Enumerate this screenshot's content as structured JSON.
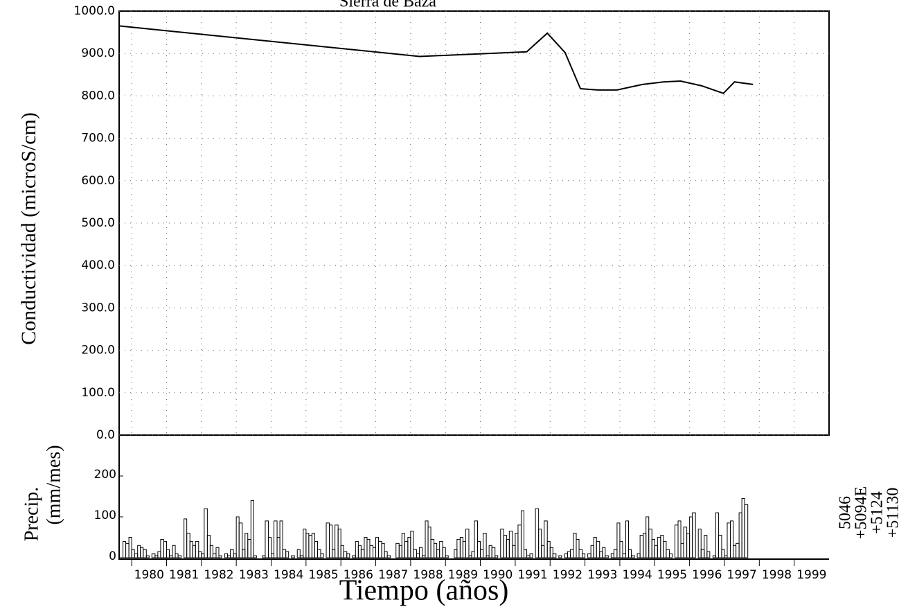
{
  "chart_data": [
    {
      "type": "line",
      "title": "Sierra de Baza",
      "ylabel": "Conductividad (microS/cm)",
      "series": [
        {
          "color": "#000000",
          "x": [
            1979.64,
            1988.26,
            1991.33,
            1991.92,
            1992.43,
            1992.87,
            1993.37,
            1993.92,
            1994.65,
            1995.25,
            1995.74,
            1996.34,
            1996.97,
            1997.29,
            1997.82
          ],
          "values": [
            965,
            893,
            904,
            948,
            902,
            817,
            814,
            814,
            827,
            833,
            835,
            824,
            806,
            833,
            827
          ]
        }
      ],
      "xlim": [
        1979.64,
        2000.0
      ],
      "ylim": [
        0,
        1000
      ],
      "yticks": [
        {
          "value": 0,
          "label": "0.0"
        },
        {
          "value": 100,
          "label": "100.0"
        },
        {
          "value": 200,
          "label": "200.0"
        },
        {
          "value": 300,
          "label": "300.0"
        },
        {
          "value": 400,
          "label": "400.0"
        },
        {
          "value": 500,
          "label": "500.0"
        },
        {
          "value": 600,
          "label": "600.0"
        },
        {
          "value": 700,
          "label": "700.0"
        },
        {
          "value": 800,
          "label": "800.0"
        },
        {
          "value": 900,
          "label": "900.0"
        },
        {
          "value": 1000,
          "label": "1000.0"
        }
      ],
      "grid": true
    },
    {
      "type": "histogram",
      "ylabel": [
        "Precip.",
        "(mm/mes)"
      ],
      "xlabel": "Tiempo (años)",
      "color": "#000000",
      "annotations": [
        "5046",
        "+5094E",
        "+5124",
        "+51130"
      ],
      "bins": [
        1979.75,
        1979.83,
        1979.92,
        1980.0,
        1980.08,
        1980.17,
        1980.25,
        1980.33,
        1980.42,
        1980.5,
        1980.58,
        1980.67,
        1980.75,
        1980.83,
        1980.92,
        1981.0,
        1981.08,
        1981.17,
        1981.25,
        1981.33,
        1981.42,
        1981.5,
        1981.58,
        1981.67,
        1981.75,
        1981.83,
        1981.92,
        1982.0,
        1982.08,
        1982.17,
        1982.25,
        1982.33,
        1982.42,
        1982.5,
        1982.58,
        1982.67,
        1982.75,
        1982.83,
        1982.92,
        1983.0,
        1983.08,
        1983.17,
        1983.25,
        1983.33,
        1983.42,
        1983.5,
        1983.58,
        1983.67,
        1983.75,
        1983.83,
        1983.92,
        1984.0,
        1984.08,
        1984.17,
        1984.25,
        1984.33,
        1984.42,
        1984.5,
        1984.58,
        1984.67,
        1984.75,
        1984.83,
        1984.92,
        1985.0,
        1985.08,
        1985.17,
        1985.25,
        1985.33,
        1985.42,
        1985.5,
        1985.58,
        1985.67,
        1985.75,
        1985.83,
        1985.92,
        1986.0,
        1986.08,
        1986.17,
        1986.25,
        1986.33,
        1986.42,
        1986.5,
        1986.58,
        1986.67,
        1986.75,
        1986.83,
        1986.92,
        1987.0,
        1987.08,
        1987.17,
        1987.25,
        1987.33,
        1987.42,
        1987.5,
        1987.58,
        1987.67,
        1987.75,
        1987.83,
        1987.92,
        1988.0,
        1988.08,
        1988.17,
        1988.25,
        1988.33,
        1988.42,
        1988.5,
        1988.58,
        1988.67,
        1988.75,
        1988.83,
        1988.92,
        1989.0,
        1989.08,
        1989.17,
        1989.25,
        1989.33,
        1989.42,
        1989.5,
        1989.58,
        1989.67,
        1989.75,
        1989.83,
        1989.92,
        1990.0,
        1990.08,
        1990.17,
        1990.25,
        1990.33,
        1990.42,
        1990.5,
        1990.58,
        1990.67,
        1990.75,
        1990.83,
        1990.92,
        1991.0,
        1991.08,
        1991.17,
        1991.25,
        1991.33,
        1991.42,
        1991.5,
        1991.58,
        1991.67,
        1991.75,
        1991.83,
        1991.92,
        1992.0,
        1992.08,
        1992.17,
        1992.25,
        1992.33,
        1992.42,
        1992.5,
        1992.58,
        1992.67,
        1992.75,
        1992.83,
        1992.92,
        1993.0,
        1993.08,
        1993.17,
        1993.25,
        1993.33,
        1993.42,
        1993.5,
        1993.58,
        1993.67,
        1993.75,
        1993.83,
        1993.92,
        1994.0,
        1994.08,
        1994.17,
        1994.25,
        1994.33,
        1994.42,
        1994.5,
        1994.58,
        1994.67,
        1994.75,
        1994.83,
        1994.92,
        1995.0,
        1995.08,
        1995.17,
        1995.25,
        1995.33,
        1995.42,
        1995.5,
        1995.58,
        1995.67,
        1995.75,
        1995.83,
        1995.92,
        1996.0,
        1996.08,
        1996.17,
        1996.25,
        1996.33,
        1996.42,
        1996.5,
        1996.58,
        1996.67,
        1996.75,
        1996.83,
        1996.92,
        1997.0,
        1997.08,
        1997.17,
        1997.25,
        1997.33,
        1997.42,
        1997.5,
        1997.58,
        1997.67
      ],
      "values": [
        40,
        35,
        50,
        20,
        10,
        30,
        25,
        20,
        5,
        0,
        10,
        5,
        15,
        45,
        40,
        20,
        5,
        30,
        10,
        5,
        0,
        95,
        60,
        40,
        30,
        40,
        15,
        10,
        120,
        55,
        30,
        10,
        25,
        5,
        0,
        10,
        5,
        20,
        10,
        100,
        85,
        20,
        60,
        45,
        140,
        5,
        0,
        0,
        5,
        90,
        50,
        10,
        90,
        50,
        90,
        20,
        15,
        0,
        5,
        0,
        20,
        5,
        70,
        60,
        55,
        60,
        40,
        20,
        10,
        0,
        85,
        80,
        20,
        80,
        70,
        30,
        15,
        10,
        0,
        5,
        40,
        30,
        20,
        50,
        45,
        30,
        25,
        50,
        40,
        35,
        15,
        5,
        0,
        0,
        35,
        30,
        60,
        40,
        50,
        65,
        20,
        10,
        25,
        5,
        90,
        75,
        45,
        35,
        20,
        40,
        25,
        5,
        0,
        0,
        20,
        45,
        50,
        40,
        70,
        5,
        15,
        90,
        40,
        20,
        60,
        5,
        30,
        25,
        5,
        0,
        70,
        55,
        45,
        65,
        30,
        60,
        80,
        115,
        20,
        5,
        10,
        0,
        120,
        70,
        30,
        90,
        40,
        25,
        10,
        0,
        5,
        0,
        10,
        15,
        20,
        60,
        45,
        20,
        10,
        0,
        10,
        30,
        50,
        40,
        15,
        25,
        5,
        0,
        10,
        20,
        85,
        40,
        10,
        90,
        20,
        5,
        0,
        10,
        55,
        60,
        100,
        70,
        45,
        30,
        50,
        55,
        40,
        20,
        10,
        0,
        80,
        90,
        35,
        75,
        60,
        100,
        110,
        0,
        70,
        20,
        55,
        15,
        0,
        5,
        110,
        55,
        20,
        5,
        85,
        90,
        30,
        35,
        110,
        145,
        130
      ],
      "xlim": [
        1979.64,
        2000.0
      ],
      "xticks": [
        1980,
        1981,
        1982,
        1983,
        1984,
        1985,
        1986,
        1987,
        1988,
        1989,
        1990,
        1991,
        1992,
        1993,
        1994,
        1995,
        1996,
        1997,
        1998,
        1999
      ],
      "ylim": [
        0,
        300
      ],
      "yticks": [
        0,
        100,
        200
      ]
    }
  ]
}
